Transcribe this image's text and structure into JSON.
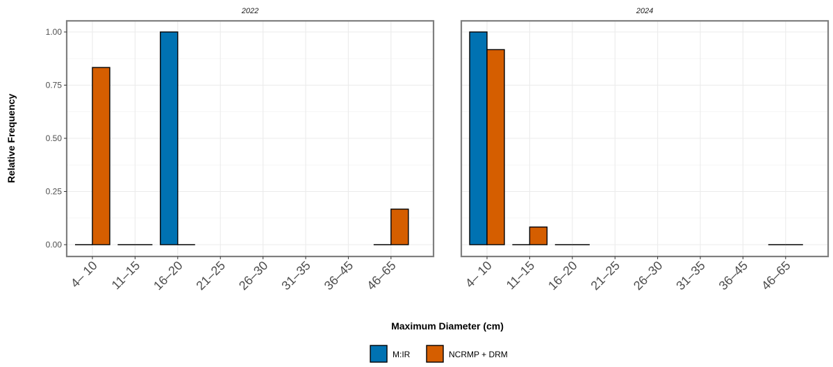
{
  "chart_data": {
    "type": "bar",
    "categories": [
      "4– 10",
      "11–15",
      "16–20",
      "21–25",
      "26–30",
      "31–35",
      "36–45",
      "46–65"
    ],
    "ylabel": "Relative Frequency",
    "xlabel": "Maximum Diameter (cm)",
    "ylim": [
      0,
      1
    ],
    "yticks": [
      "0.00",
      "0.25",
      "0.50",
      "0.75",
      "1.00"
    ],
    "grid": true,
    "legend_position": "bottom",
    "series_names": [
      "M:IR",
      "NCRMP + DRM"
    ],
    "colors": {
      "M:IR": "#0072b2",
      "NCRMP + DRM": "#d55e00"
    },
    "panels": [
      {
        "title": "2022",
        "series": [
          {
            "name": "M:IR",
            "values": [
              0,
              0,
              1.0,
              null,
              null,
              null,
              null,
              0
            ]
          },
          {
            "name": "NCRMP + DRM",
            "values": [
              0.833,
              0,
              0,
              null,
              null,
              null,
              null,
              0.167
            ]
          }
        ]
      },
      {
        "title": "2024",
        "series": [
          {
            "name": "M:IR",
            "values": [
              1.0,
              0,
              0,
              null,
              null,
              null,
              null,
              0
            ]
          },
          {
            "name": "NCRMP + DRM",
            "values": [
              0.917,
              0.083,
              0,
              null,
              null,
              null,
              null,
              0
            ]
          }
        ]
      }
    ]
  }
}
